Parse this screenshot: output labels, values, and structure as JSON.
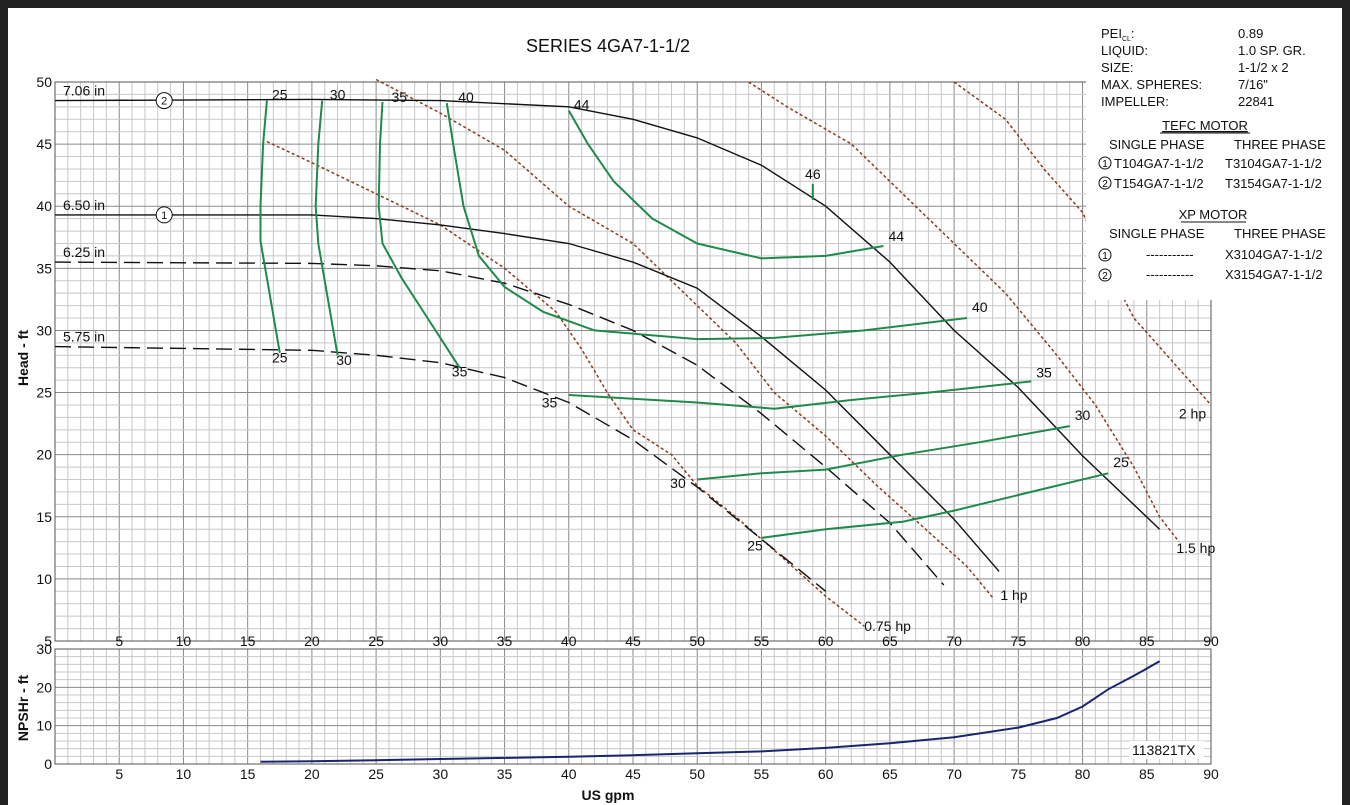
{
  "chart_data": {
    "type": "line",
    "title": "SERIES 4GA7-1-1/2",
    "xlabel": "US gpm",
    "ylabel_head": "Head - ft",
    "ylabel_npsh": "NPSHr - ft",
    "footer_code": "113821TX",
    "head_xlim": [
      0,
      90
    ],
    "head_ylim": [
      5,
      50
    ],
    "npsh_ylim": [
      0,
      30
    ],
    "x_ticks": [
      5,
      10,
      15,
      20,
      25,
      30,
      35,
      40,
      45,
      50,
      55,
      60,
      65,
      70,
      75,
      80,
      85,
      90
    ],
    "head_y_ticks": [
      5,
      10,
      15,
      20,
      25,
      30,
      35,
      40,
      45,
      50
    ],
    "npsh_y_ticks": [
      0,
      10,
      20,
      30
    ],
    "info": {
      "pei_label": "PEI",
      "pei_sub": "CL",
      "pei_value": "0.89",
      "liquid_label": "LIQUID:",
      "liquid_value": "1.0 SP. GR.",
      "size_label": "SIZE:",
      "size_value": "1-1/2 x 2",
      "spheres_label": "MAX. SPHERES:",
      "spheres_value": "7/16\"",
      "impeller_label": "IMPELLER:",
      "impeller_value": "22841",
      "tefc_heading": "TEFC MOTOR",
      "xp_heading": "XP MOTOR",
      "single_phase": "SINGLE PHASE",
      "three_phase": "THREE PHASE",
      "tefc_rows": [
        {
          "num": "1",
          "single": "T104GA7-1-1/2",
          "three": "T3104GA7-1-1/2"
        },
        {
          "num": "2",
          "single": "T154GA7-1-1/2",
          "three": "T3154GA7-1-1/2"
        }
      ],
      "xp_rows": [
        {
          "num": "1",
          "single": "-----------",
          "three": "X3104GA7-1-1/2"
        },
        {
          "num": "2",
          "single": "-----------",
          "three": "X3154GA7-1-1/2"
        }
      ]
    },
    "impeller_curves": [
      {
        "label": "7.06 in",
        "motor": "2",
        "style": "solid",
        "points": [
          [
            0,
            48.5
          ],
          [
            20,
            48.6
          ],
          [
            30,
            48.5
          ],
          [
            40,
            48.0
          ],
          [
            45,
            47.0
          ],
          [
            50,
            45.5
          ],
          [
            55,
            43.3
          ],
          [
            60,
            40.0
          ],
          [
            65,
            35.5
          ],
          [
            70,
            30.0
          ],
          [
            75,
            25.4
          ],
          [
            80,
            19.9
          ],
          [
            86,
            14.0
          ]
        ]
      },
      {
        "label": "6.50 in",
        "motor": "1",
        "style": "solid",
        "points": [
          [
            0,
            39.3
          ],
          [
            20,
            39.3
          ],
          [
            25,
            39.0
          ],
          [
            30,
            38.5
          ],
          [
            35,
            37.8
          ],
          [
            40,
            37.0
          ],
          [
            45,
            35.5
          ],
          [
            50,
            33.4
          ],
          [
            55,
            29.5
          ],
          [
            60,
            25.2
          ],
          [
            65,
            20.0
          ],
          [
            70,
            14.8
          ],
          [
            73.5,
            10.6
          ]
        ]
      },
      {
        "label": "6.25 in",
        "style": "dashed",
        "points": [
          [
            0,
            35.5
          ],
          [
            20,
            35.4
          ],
          [
            25,
            35.2
          ],
          [
            30,
            34.8
          ],
          [
            35,
            33.8
          ],
          [
            40,
            32.1
          ],
          [
            45,
            30.0
          ],
          [
            50,
            27.2
          ],
          [
            55,
            23.3
          ],
          [
            60,
            19.0
          ],
          [
            65,
            14.5
          ],
          [
            69.2,
            9.5
          ]
        ]
      },
      {
        "label": "5.75 in",
        "style": "dashed",
        "points": [
          [
            0,
            28.7
          ],
          [
            20,
            28.4
          ],
          [
            25,
            28.0
          ],
          [
            30,
            27.4
          ],
          [
            35,
            26.2
          ],
          [
            40,
            24.2
          ],
          [
            45,
            21.2
          ],
          [
            50,
            17.4
          ],
          [
            55,
            13.2
          ],
          [
            60,
            9.0
          ]
        ]
      }
    ],
    "efficiency_curves": [
      {
        "label": "25",
        "points": [
          [
            16.5,
            48.5
          ],
          [
            16.2,
            45
          ],
          [
            16.0,
            40
          ],
          [
            16.0,
            37.2
          ],
          [
            17.5,
            28.2
          ]
        ]
      },
      {
        "label": "30",
        "points": [
          [
            20.8,
            48.5
          ],
          [
            20.5,
            45
          ],
          [
            20.3,
            40
          ],
          [
            20.5,
            37
          ],
          [
            22,
            28
          ]
        ]
      },
      {
        "label": "35",
        "points": [
          [
            25.5,
            48.4
          ],
          [
            25.3,
            45
          ],
          [
            25.2,
            40
          ],
          [
            25.5,
            37
          ],
          [
            27,
            34.2
          ],
          [
            29,
            31
          ],
          [
            31.5,
            27
          ]
        ]
      },
      {
        "label": "40",
        "points": [
          [
            30.5,
            48.3
          ],
          [
            31,
            45
          ],
          [
            31.8,
            40
          ],
          [
            33,
            36
          ],
          [
            35,
            33.5
          ],
          [
            38,
            31.5
          ],
          [
            42,
            30
          ],
          [
            50,
            29.3
          ],
          [
            56,
            29.4
          ],
          [
            63,
            30
          ],
          [
            71,
            31
          ]
        ]
      },
      {
        "label": "44",
        "points": [
          [
            40,
            47.7
          ],
          [
            41.5,
            45
          ],
          [
            43.5,
            42
          ],
          [
            46.5,
            39
          ],
          [
            50,
            37
          ],
          [
            55,
            35.8
          ],
          [
            60,
            36
          ],
          [
            64.5,
            36.8
          ]
        ]
      },
      {
        "label": "46",
        "points": [
          [
            59,
            41.8
          ],
          [
            59,
            40.5
          ]
        ]
      },
      {
        "label": "35b",
        "points": [
          [
            40,
            24.8
          ],
          [
            45,
            24.5
          ],
          [
            50,
            24.2
          ],
          [
            56,
            23.7
          ],
          [
            62,
            24.4
          ],
          [
            68,
            25
          ],
          [
            76,
            25.9
          ]
        ]
      },
      {
        "label": "30b",
        "points": [
          [
            50,
            18
          ],
          [
            55,
            18.5
          ],
          [
            60,
            18.8
          ],
          [
            66,
            20
          ],
          [
            72,
            21
          ],
          [
            79,
            22.3
          ]
        ]
      },
      {
        "label": "25b",
        "points": [
          [
            55,
            13.3
          ],
          [
            60,
            14
          ],
          [
            66,
            14.6
          ],
          [
            70,
            15.5
          ],
          [
            76,
            17
          ],
          [
            82,
            18.5
          ]
        ]
      }
    ],
    "efficiency_labels": [
      {
        "text": "25",
        "x": 17.5,
        "y": 48.6
      },
      {
        "text": "30",
        "x": 22.0,
        "y": 48.6
      },
      {
        "text": "35",
        "x": 26.8,
        "y": 48.4
      },
      {
        "text": "40",
        "x": 32.0,
        "y": 48.4
      },
      {
        "text": "44",
        "x": 41.0,
        "y": 47.8
      },
      {
        "text": "46",
        "x": 59.0,
        "y": 42.2
      },
      {
        "text": "44",
        "x": 65.5,
        "y": 37.2
      },
      {
        "text": "40",
        "x": 72.0,
        "y": 31.5
      },
      {
        "text": "35",
        "x": 77.0,
        "y": 26.2
      },
      {
        "text": "30",
        "x": 80.0,
        "y": 22.8
      },
      {
        "text": "25",
        "x": 83.0,
        "y": 19.0
      },
      {
        "text": "25",
        "x": 17.5,
        "y": 27.4
      },
      {
        "text": "30",
        "x": 22.5,
        "y": 27.2
      },
      {
        "text": "35",
        "x": 31.5,
        "y": 26.3
      },
      {
        "text": "35",
        "x": 38.5,
        "y": 23.8
      },
      {
        "text": "30",
        "x": 48.5,
        "y": 17.3
      },
      {
        "text": "25",
        "x": 54.5,
        "y": 12.3
      }
    ],
    "power_curves": [
      {
        "label": "0.75 hp",
        "points": [
          [
            16.5,
            45.2
          ],
          [
            20,
            43.5
          ],
          [
            25,
            41
          ],
          [
            30,
            38.5
          ],
          [
            35,
            35
          ],
          [
            39,
            31.5
          ],
          [
            41,
            28.5
          ],
          [
            43,
            25
          ],
          [
            45,
            22
          ],
          [
            48,
            20
          ],
          [
            50,
            17.5
          ],
          [
            53,
            15
          ],
          [
            56,
            12.3
          ],
          [
            60,
            8.6
          ],
          [
            63,
            6.2
          ]
        ]
      },
      {
        "label": "1 hp",
        "points": [
          [
            25,
            50.2
          ],
          [
            30,
            47.5
          ],
          [
            35,
            44.5
          ],
          [
            40,
            40
          ],
          [
            45,
            37
          ],
          [
            50,
            32
          ],
          [
            53,
            29
          ],
          [
            56,
            25
          ],
          [
            60,
            21.5
          ],
          [
            64,
            17.5
          ],
          [
            68,
            13.8
          ],
          [
            71,
            11
          ],
          [
            73,
            8.5
          ]
        ]
      },
      {
        "label": "1.5 hp",
        "points": [
          [
            54,
            50
          ],
          [
            57,
            48
          ],
          [
            62,
            45
          ],
          [
            66,
            41
          ],
          [
            70,
            37
          ],
          [
            74,
            33
          ],
          [
            78,
            28
          ],
          [
            81,
            24
          ],
          [
            84,
            19
          ],
          [
            86,
            15
          ],
          [
            87.5,
            13
          ]
        ]
      },
      {
        "label": "2 hp",
        "points": [
          [
            70,
            50
          ],
          [
            74,
            47
          ],
          [
            77,
            43
          ],
          [
            80,
            39.5
          ],
          [
            82,
            35
          ],
          [
            84,
            31
          ],
          [
            87,
            27.5
          ],
          [
            90,
            24
          ]
        ]
      }
    ],
    "power_labels": [
      {
        "text": "0.75 hp",
        "x": 63.0,
        "y": 5.8
      },
      {
        "text": "1 hp",
        "x": 73.6,
        "y": 8.3
      },
      {
        "text": "1.5 hp",
        "x": 87.3,
        "y": 12.1
      },
      {
        "text": "2 hp",
        "x": 87.5,
        "y": 22.9
      }
    ],
    "npsh_curve": {
      "points": [
        [
          16,
          0.6
        ],
        [
          20,
          0.7
        ],
        [
          25,
          1.0
        ],
        [
          30,
          1.3
        ],
        [
          35,
          1.6
        ],
        [
          40,
          1.9
        ],
        [
          45,
          2.3
        ],
        [
          50,
          2.8
        ],
        [
          55,
          3.3
        ],
        [
          60,
          4.2
        ],
        [
          65,
          5.4
        ],
        [
          70,
          7.0
        ],
        [
          75,
          9.5
        ],
        [
          78,
          12.0
        ],
        [
          80,
          15
        ],
        [
          82,
          19.5
        ],
        [
          84,
          23
        ],
        [
          86,
          26.8
        ]
      ]
    }
  }
}
